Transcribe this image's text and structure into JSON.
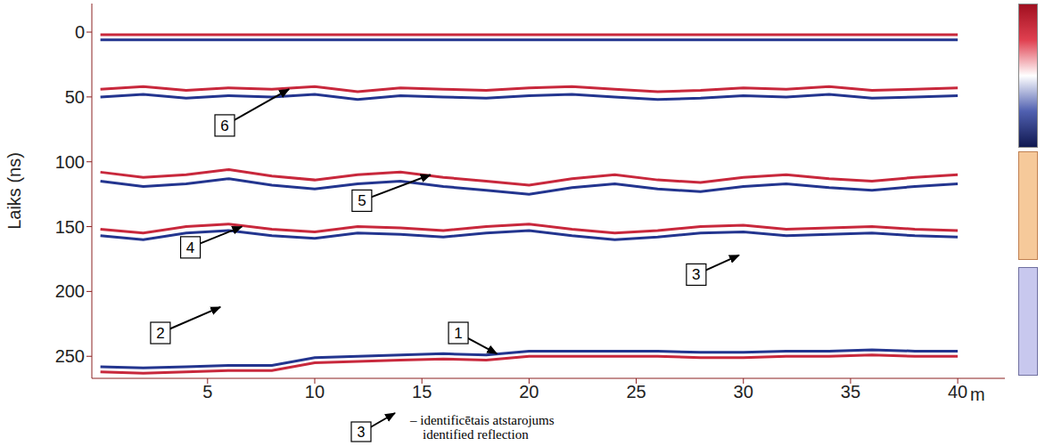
{
  "chart_data": {
    "type": "line",
    "y_label": "Laiks (ns)",
    "x_label": "m",
    "x": [
      0,
      2,
      4,
      6,
      8,
      10,
      12,
      14,
      16,
      18,
      20,
      22,
      24,
      26,
      28,
      30,
      32,
      34,
      36,
      38,
      40
    ],
    "xlim": [
      -0.4,
      42.2
    ],
    "xticks": [
      5,
      10,
      15,
      20,
      25,
      30,
      35,
      40
    ],
    "ylim": [
      -22,
      267
    ],
    "yticks": [
      0,
      50,
      100,
      150,
      200,
      250
    ],
    "grid": false,
    "series": [
      {
        "color": "#c8283c",
        "values": [
          2,
          2,
          2,
          2,
          2,
          2,
          2,
          2,
          2,
          2,
          2,
          2,
          2,
          2,
          2,
          2,
          2,
          2,
          2,
          2,
          2
        ]
      },
      {
        "color": "#23358f",
        "values": [
          6,
          6,
          6,
          6,
          6,
          6,
          6,
          6,
          6,
          6,
          6,
          6,
          6,
          6,
          6,
          6,
          6,
          6,
          6,
          6,
          6
        ]
      },
      {
        "color": "#c8283c",
        "values": [
          44,
          42,
          45,
          43,
          44,
          42,
          46,
          43,
          44,
          45,
          43,
          42,
          44,
          46,
          45,
          43,
          44,
          42,
          45,
          44,
          43
        ]
      },
      {
        "color": "#23358f",
        "values": [
          50,
          48,
          51,
          49,
          50,
          48,
          52,
          49,
          50,
          51,
          49,
          48,
          50,
          52,
          51,
          49,
          50,
          48,
          51,
          50,
          49
        ]
      },
      {
        "color": "#c8283c",
        "values": [
          108,
          112,
          110,
          106,
          111,
          114,
          110,
          108,
          112,
          115,
          118,
          113,
          110,
          114,
          116,
          112,
          110,
          113,
          115,
          112,
          110
        ]
      },
      {
        "color": "#23358f",
        "values": [
          115,
          119,
          117,
          113,
          118,
          121,
          117,
          115,
          119,
          122,
          125,
          120,
          117,
          121,
          123,
          119,
          117,
          120,
          122,
          119,
          117
        ]
      },
      {
        "color": "#c8283c",
        "values": [
          152,
          155,
          150,
          148,
          152,
          154,
          150,
          151,
          153,
          150,
          148,
          152,
          155,
          153,
          150,
          149,
          152,
          151,
          150,
          152,
          153
        ]
      },
      {
        "color": "#23358f",
        "values": [
          157,
          160,
          155,
          153,
          157,
          159,
          155,
          156,
          158,
          155,
          153,
          157,
          160,
          158,
          155,
          154,
          157,
          156,
          155,
          157,
          158
        ]
      },
      {
        "color": "#23358f",
        "values": [
          258,
          259,
          258,
          257,
          257,
          251,
          250,
          249,
          248,
          249,
          246,
          246,
          246,
          246,
          247,
          247,
          246,
          246,
          245,
          246,
          246
        ]
      },
      {
        "color": "#c8283c",
        "values": [
          262,
          263,
          262,
          261,
          261,
          255,
          254,
          253,
          252,
          253,
          250,
          250,
          250,
          250,
          251,
          251,
          250,
          250,
          249,
          250,
          250
        ]
      }
    ],
    "annotations": [
      {
        "label": "1",
        "x": 16.7,
        "y": 232,
        "arrow_x": 18.5,
        "arrow_y": 248
      },
      {
        "label": "2",
        "x": 2.8,
        "y": 232,
        "arrow_x": 5.6,
        "arrow_y": 212
      },
      {
        "label": "3",
        "x": 27.8,
        "y": 187,
        "arrow_x": 29.8,
        "arrow_y": 172
      },
      {
        "label": "4",
        "x": 4.2,
        "y": 166,
        "arrow_x": 6.6,
        "arrow_y": 150
      },
      {
        "label": "5",
        "x": 12.2,
        "y": 130,
        "arrow_x": 15.4,
        "arrow_y": 110
      },
      {
        "label": "6",
        "x": 5.8,
        "y": 72,
        "arrow_x": 8.8,
        "arrow_y": 44
      }
    ],
    "legend_note": {
      "label": "3",
      "text": [
        "– identificētais atstarojums",
        "identified reflection"
      ]
    }
  }
}
